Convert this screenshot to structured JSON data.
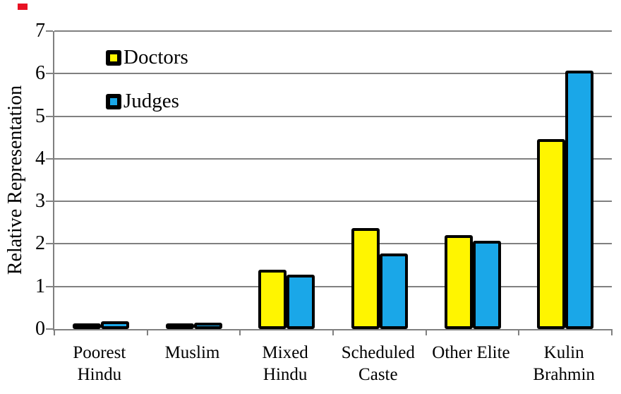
{
  "page": {
    "background_color": "#FFFFFF"
  },
  "decorations": {
    "red_marker_color": "#E81123"
  },
  "chart_data": {
    "type": "bar",
    "title": "",
    "xlabel": "",
    "ylabel": "Relative Representation",
    "categories": [
      "Poorest Hindu",
      "Muslim",
      "Mixed Hindu",
      "Scheduled Caste",
      "Other Elite",
      "Kulin Brahmin"
    ],
    "category_label_lines": [
      [
        "Poorest",
        "Hindu"
      ],
      [
        "Muslim"
      ],
      [
        "Mixed",
        "Hindu"
      ],
      [
        "Scheduled",
        "Caste"
      ],
      [
        "Other Elite"
      ],
      [
        "Kulin",
        "Brahmin"
      ]
    ],
    "series": [
      {
        "name": "Doctors",
        "color": "#FFF500",
        "values": [
          0.07,
          0.12,
          1.4,
          2.38,
          2.21,
          4.47
        ]
      },
      {
        "name": "Judges",
        "color": "#1AA7E8",
        "values": [
          0.18,
          0.15,
          1.28,
          1.77,
          2.08,
          6.07
        ]
      }
    ],
    "ylim": [
      0,
      7
    ],
    "yticks": [
      0,
      1,
      2,
      3,
      4,
      5,
      6,
      7
    ],
    "grid": true,
    "legend_position": "top-left-inside",
    "bar_border_color": "#000000",
    "axis_color": "#808080",
    "gridline_color": "#808080"
  }
}
